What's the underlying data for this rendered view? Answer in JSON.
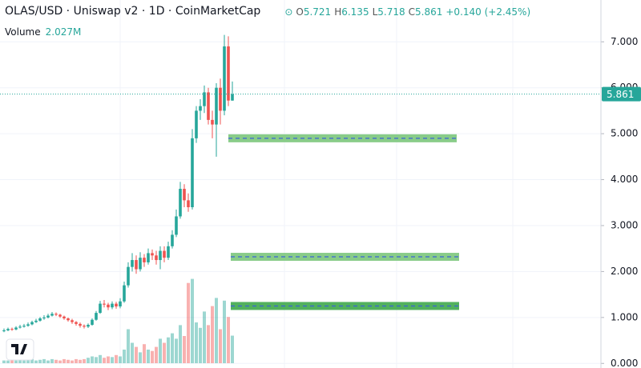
{
  "chart_data": {
    "type": "candlestick",
    "title": "OLAS/USD · Uniswap v2 · 1D · CoinMarketCap",
    "ohlc_letters": [
      "O",
      "H",
      "L",
      "C"
    ],
    "change_label": "+0.140 (+2.45%)",
    "volume_title": "Volume",
    "volume_value_label": "2.027M",
    "up_color": "#26a69a",
    "down_color": "#ef5350",
    "candles": {
      "open": [
        0.7,
        0.72,
        0.75,
        0.74,
        0.78,
        0.8,
        0.82,
        0.85,
        0.9,
        0.93,
        0.98,
        1.0,
        1.04,
        1.08,
        1.06,
        1.02,
        0.98,
        0.94,
        0.9,
        0.86,
        0.82,
        0.8,
        0.84,
        0.95,
        1.1,
        1.3,
        1.28,
        1.22,
        1.3,
        1.24,
        1.35,
        1.7,
        2.1,
        2.25,
        2.05,
        2.3,
        2.2,
        2.4,
        2.35,
        2.25,
        2.45,
        2.3,
        2.55,
        2.8,
        3.2,
        3.8,
        3.55,
        3.4,
        4.9,
        5.5,
        5.6,
        5.9,
        5.3,
        5.2,
        6.0,
        5.5,
        6.9,
        5.721
      ],
      "high": [
        0.76,
        0.78,
        0.78,
        0.81,
        0.84,
        0.86,
        0.89,
        0.93,
        0.97,
        1.01,
        1.05,
        1.08,
        1.12,
        1.11,
        1.08,
        1.04,
        1.0,
        0.97,
        0.92,
        0.89,
        0.85,
        0.87,
        0.98,
        1.14,
        1.36,
        1.38,
        1.32,
        1.35,
        1.34,
        1.42,
        1.78,
        2.2,
        2.4,
        2.35,
        2.42,
        2.38,
        2.5,
        2.48,
        2.45,
        2.55,
        2.55,
        2.65,
        2.9,
        3.35,
        3.95,
        3.9,
        3.7,
        5.1,
        5.6,
        5.75,
        6.05,
        6.0,
        5.5,
        6.1,
        6.2,
        7.15,
        7.12,
        6.135
      ],
      "low": [
        0.68,
        0.7,
        0.71,
        0.72,
        0.76,
        0.78,
        0.8,
        0.83,
        0.88,
        0.91,
        0.95,
        0.98,
        1.02,
        1.03,
        0.99,
        0.95,
        0.91,
        0.86,
        0.82,
        0.78,
        0.76,
        0.77,
        0.82,
        0.93,
        1.08,
        1.22,
        1.16,
        1.18,
        1.19,
        1.2,
        1.32,
        1.65,
        2.0,
        1.95,
        2.0,
        2.1,
        2.15,
        2.25,
        2.15,
        2.05,
        2.2,
        2.25,
        2.5,
        2.75,
        3.15,
        3.4,
        3.3,
        3.35,
        4.8,
        5.3,
        5.45,
        5.2,
        4.9,
        4.5,
        5.2,
        5.4,
        5.6,
        5.718
      ],
      "close": [
        0.72,
        0.75,
        0.74,
        0.78,
        0.8,
        0.82,
        0.85,
        0.9,
        0.93,
        0.98,
        1.0,
        1.04,
        1.08,
        1.06,
        1.02,
        0.98,
        0.94,
        0.9,
        0.86,
        0.82,
        0.8,
        0.84,
        0.95,
        1.1,
        1.3,
        1.28,
        1.22,
        1.3,
        1.24,
        1.35,
        1.7,
        2.1,
        2.25,
        2.05,
        2.3,
        2.2,
        2.4,
        2.35,
        2.25,
        2.45,
        2.3,
        2.55,
        2.8,
        3.2,
        3.8,
        3.55,
        3.4,
        4.9,
        5.5,
        5.6,
        5.9,
        5.3,
        5.2,
        6.0,
        5.5,
        6.9,
        5.721,
        5.861
      ]
    },
    "volume": {
      "values": [
        0.2,
        0.2,
        0.25,
        0.2,
        0.3,
        0.2,
        0.25,
        0.3,
        0.2,
        0.25,
        0.3,
        0.2,
        0.3,
        0.25,
        0.2,
        0.3,
        0.25,
        0.2,
        0.3,
        0.25,
        0.3,
        0.4,
        0.5,
        0.45,
        0.6,
        0.4,
        0.5,
        0.45,
        0.6,
        0.5,
        1.0,
        2.5,
        1.5,
        1.2,
        0.8,
        1.4,
        1.0,
        0.9,
        1.2,
        1.8,
        1.5,
        1.9,
        2.2,
        1.8,
        2.8,
        2.0,
        5.9,
        6.2,
        3.0,
        2.6,
        3.8,
        2.8,
        4.2,
        4.8,
        2.5,
        4.6,
        3.4,
        2.027
      ],
      "ylim": [
        0,
        8
      ]
    },
    "zones": {
      "values": [
        4.9,
        2.32,
        1.25
      ],
      "colors": [
        "#7cc67c",
        "#7cc67c",
        "#3fa84c"
      ]
    },
    "ylim": [
      -0.1,
      7.91
    ],
    "yticks": [
      {
        "value": 0,
        "label": "0.000"
      },
      {
        "value": 1,
        "label": "1.000"
      },
      {
        "value": 2,
        "label": "2.000"
      },
      {
        "value": 3,
        "label": "3.000"
      },
      {
        "value": 4,
        "label": "4.000"
      },
      {
        "value": 5,
        "label": "5.000"
      },
      {
        "value": 6,
        "label": "6.000"
      },
      {
        "value": 7,
        "label": "7.000"
      }
    ],
    "grid": true
  }
}
